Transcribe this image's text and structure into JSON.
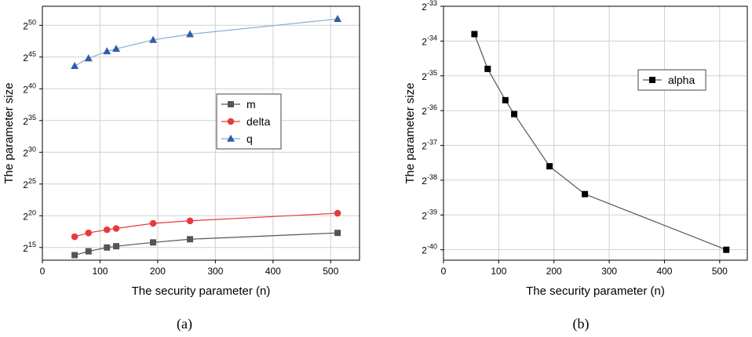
{
  "panels": [
    {
      "caption": "(a)",
      "chart_data": {
        "type": "line",
        "xlabel": "The security parameter (n)",
        "ylabel": "The parameter size",
        "x": [
          56,
          80,
          112,
          128,
          192,
          256,
          512
        ],
        "xlim": [
          0,
          550
        ],
        "xticks": [
          0,
          100,
          200,
          300,
          400,
          500
        ],
        "ylim": [
          13,
          53
        ],
        "yscale": "log2",
        "yticks": [
          15,
          20,
          25,
          30,
          35,
          40,
          45,
          50
        ],
        "ytick_labels": [
          {
            "base": "2",
            "exp": "15"
          },
          {
            "base": "2",
            "exp": "20"
          },
          {
            "base": "2",
            "exp": "25"
          },
          {
            "base": "2",
            "exp": "30"
          },
          {
            "base": "2",
            "exp": "35"
          },
          {
            "base": "2",
            "exp": "40"
          },
          {
            "base": "2",
            "exp": "45"
          },
          {
            "base": "2",
            "exp": "50"
          }
        ],
        "grid": true,
        "legend_position": "middle-right",
        "series": [
          {
            "name": "m",
            "color": "#555555",
            "marker": "square",
            "y_log2": [
              13.8,
              14.4,
              15.0,
              15.2,
              15.8,
              16.3,
              17.3
            ]
          },
          {
            "name": "delta",
            "color": "#e8393c",
            "marker": "circle",
            "y_log2": [
              16.7,
              17.3,
              17.8,
              18.0,
              18.8,
              19.2,
              20.4
            ]
          },
          {
            "name": "q",
            "color": "#2f5da8",
            "line_color": "#8aaad8",
            "marker": "triangle",
            "y_log2": [
              43.6,
              44.8,
              45.9,
              46.3,
              47.7,
              48.6,
              51.0
            ]
          }
        ]
      }
    },
    {
      "caption": "(b)",
      "chart_data": {
        "type": "line",
        "xlabel": "The security parameter (n)",
        "ylabel": "The parameter size",
        "x": [
          56,
          80,
          112,
          128,
          192,
          256,
          512
        ],
        "xlim": [
          0,
          550
        ],
        "xticks": [
          0,
          100,
          200,
          300,
          400,
          500
        ],
        "ylim": [
          -40.3,
          -33
        ],
        "yscale": "log2",
        "yticks": [
          -40,
          -39,
          -38,
          -37,
          -36,
          -35,
          -34,
          -33
        ],
        "ytick_labels": [
          {
            "base": "2",
            "exp": "-40"
          },
          {
            "base": "2",
            "exp": "-39"
          },
          {
            "base": "2",
            "exp": "-38"
          },
          {
            "base": "2",
            "exp": "-37"
          },
          {
            "base": "2",
            "exp": "-36"
          },
          {
            "base": "2",
            "exp": "-35"
          },
          {
            "base": "2",
            "exp": "-34"
          },
          {
            "base": "2",
            "exp": "-33"
          }
        ],
        "grid": true,
        "legend_position": "upper-right",
        "series": [
          {
            "name": "alpha",
            "color": "#000000",
            "line_color": "#555555",
            "marker": "square",
            "y_log2": [
              -33.8,
              -34.8,
              -35.7,
              -36.1,
              -37.6,
              -38.4,
              -40.0
            ]
          }
        ]
      }
    }
  ]
}
